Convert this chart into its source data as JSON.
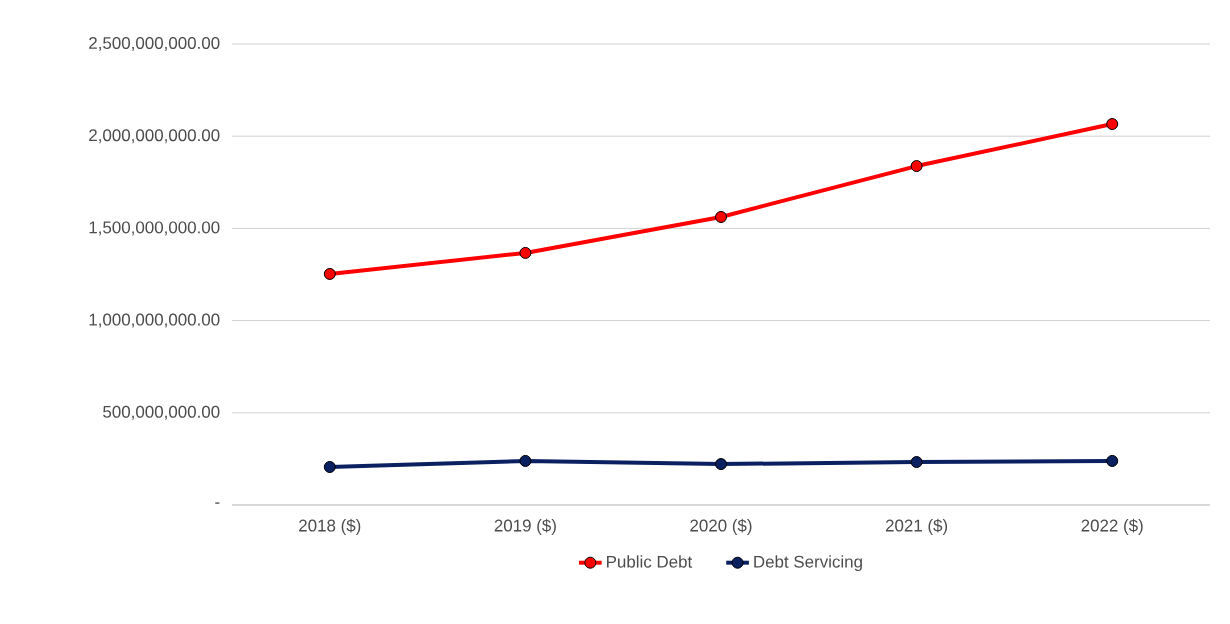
{
  "chart_data": {
    "type": "line",
    "categories": [
      "2018 ($)",
      "2019 ($)",
      "2020 ($)",
      "2021 ($)",
      "2022 ($)"
    ],
    "series": [
      {
        "name": "Public Debt",
        "color": "#ff0000",
        "values": [
          1253000000,
          1367000000,
          1562000000,
          1838000000,
          2066000000
        ]
      },
      {
        "name": "Debt Servicing",
        "color": "#0a2060",
        "values": [
          206000000,
          239000000,
          222000000,
          233000000,
          239000000
        ]
      }
    ],
    "ylim": [
      0,
      2500000000
    ],
    "yticks": [
      {
        "value": 0,
        "label": "-"
      },
      {
        "value": 500000000,
        "label": "500,000,000.00"
      },
      {
        "value": 1000000000,
        "label": "1,000,000,000.00"
      },
      {
        "value": 1500000000,
        "label": "1,500,000,000.00"
      },
      {
        "value": 2000000000,
        "label": "2,000,000,000.00"
      },
      {
        "value": 2500000000,
        "label": "2,500,000,000.00"
      }
    ],
    "grid": "y",
    "legend": "bottom",
    "marker": "circle",
    "line_style": "solid"
  }
}
